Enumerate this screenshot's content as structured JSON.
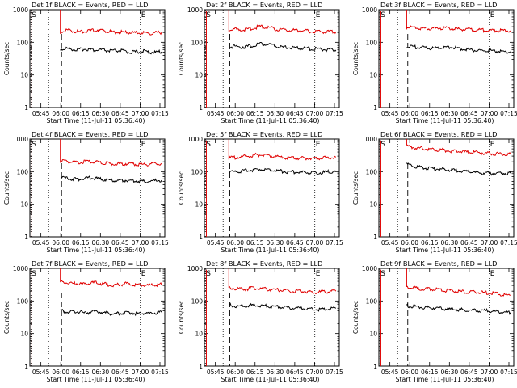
{
  "colors": {
    "events": "#000000",
    "lld": "#e00000",
    "axis": "#000000",
    "background": "#ffffff"
  },
  "common": {
    "ylabel": "Counts/sec",
    "xlabel": "Start Time (11-Jul-11 05:36:40)",
    "xtick_labels": [
      "05:45",
      "06:00",
      "06:15",
      "06:30",
      "06:45",
      "07:00",
      "07:15"
    ],
    "ytick_labels": [
      "1",
      "10",
      "100",
      "1000"
    ],
    "ylim": [
      1,
      1000
    ],
    "yscale": "log",
    "marker_S": "S",
    "marker_E": "E"
  },
  "chart_data": [
    {
      "type": "line",
      "title": "Det 1f BLACK = Events, RED = LLD",
      "series": [
        {
          "values": [
            60,
            65,
            62,
            58,
            63,
            61,
            57,
            59,
            55,
            54,
            56,
            52,
            50,
            51,
            53,
            50,
            49,
            51
          ]
        },
        {
          "values": [
            200,
            240,
            225,
            210,
            215,
            230,
            240,
            230,
            215,
            205,
            210,
            200,
            198,
            195,
            200,
            190,
            195,
            200
          ]
        }
      ]
    },
    {
      "type": "line",
      "title": "Det 2f BLACK = Events, RED = LLD",
      "series": [
        {
          "values": [
            70,
            75,
            72,
            74,
            80,
            88,
            90,
            80,
            72,
            70,
            68,
            66,
            65,
            63,
            62,
            60,
            60,
            58
          ]
        },
        {
          "values": [
            240,
            250,
            245,
            250,
            280,
            300,
            295,
            265,
            245,
            240,
            235,
            228,
            225,
            220,
            215,
            210,
            212,
            210
          ]
        }
      ]
    },
    {
      "type": "line",
      "title": "Det 3f BLACK = Events, RED = LLD",
      "series": [
        {
          "values": [
            75,
            72,
            70,
            68,
            65,
            66,
            70,
            72,
            68,
            62,
            60,
            58,
            56,
            55,
            54,
            53,
            52,
            52
          ]
        },
        {
          "values": [
            290,
            280,
            275,
            270,
            268,
            270,
            275,
            272,
            260,
            250,
            245,
            240,
            235,
            232,
            230,
            228,
            225,
            225
          ]
        }
      ]
    },
    {
      "type": "line",
      "title": "Det 4f BLACK = Events, RED = LLD",
      "series": [
        {
          "values": [
            65,
            62,
            60,
            58,
            62,
            64,
            62,
            58,
            55,
            52,
            54,
            55,
            53,
            51,
            50,
            52,
            53,
            54
          ]
        },
        {
          "values": [
            220,
            210,
            200,
            190,
            200,
            205,
            195,
            185,
            178,
            172,
            175,
            178,
            172,
            168,
            165,
            170,
            175,
            178
          ]
        }
      ]
    },
    {
      "type": "line",
      "title": "Det 5f BLACK = Events, RED = LLD",
      "series": [
        {
          "values": [
            95,
            100,
            105,
            110,
            112,
            120,
            118,
            110,
            105,
            100,
            98,
            97,
            95,
            93,
            92,
            95,
            100,
            100
          ]
        },
        {
          "values": [
            260,
            270,
            285,
            300,
            320,
            330,
            320,
            300,
            285,
            270,
            265,
            260,
            258,
            255,
            255,
            265,
            275,
            280
          ]
        }
      ]
    },
    {
      "type": "line",
      "title": "Det 6f BLACK = Events, RED = LLD",
      "series": [
        {
          "values": [
            170,
            150,
            140,
            132,
            125,
            120,
            118,
            112,
            108,
            105,
            100,
            95,
            92,
            90,
            88,
            88,
            88,
            90
          ]
        },
        {
          "values": [
            600,
            560,
            530,
            500,
            480,
            470,
            460,
            440,
            420,
            410,
            400,
            390,
            380,
            370,
            360,
            350,
            345,
            340
          ]
        }
      ]
    },
    {
      "type": "line",
      "title": "Det 7f BLACK = Events, RED = LLD",
      "series": [
        {
          "values": [
            50,
            48,
            45,
            47,
            42,
            45,
            48,
            44,
            42,
            40,
            42,
            45,
            43,
            40,
            42,
            41,
            43,
            45
          ]
        },
        {
          "values": [
            380,
            360,
            340,
            350,
            320,
            350,
            360,
            340,
            320,
            300,
            320,
            340,
            320,
            300,
            310,
            300,
            310,
            320
          ]
        }
      ]
    },
    {
      "type": "line",
      "title": "Det 8f BLACK = Events, RED = LLD",
      "series": [
        {
          "values": [
            75,
            70,
            68,
            70,
            75,
            72,
            70,
            68,
            65,
            62,
            60,
            60,
            58,
            56,
            55,
            56,
            58,
            60
          ]
        },
        {
          "values": [
            250,
            240,
            230,
            235,
            255,
            240,
            230,
            222,
            215,
            205,
            200,
            198,
            195,
            190,
            188,
            190,
            195,
            200
          ]
        }
      ]
    },
    {
      "type": "line",
      "title": "Det 9f BLACK = Events, RED = LLD",
      "series": [
        {
          "values": [
            72,
            68,
            65,
            62,
            63,
            60,
            58,
            56,
            55,
            54,
            52,
            51,
            50,
            50,
            48,
            46,
            45,
            44
          ]
        },
        {
          "values": [
            270,
            255,
            240,
            230,
            235,
            225,
            215,
            205,
            200,
            195,
            190,
            185,
            182,
            180,
            175,
            165,
            158,
            150
          ]
        }
      ]
    }
  ]
}
